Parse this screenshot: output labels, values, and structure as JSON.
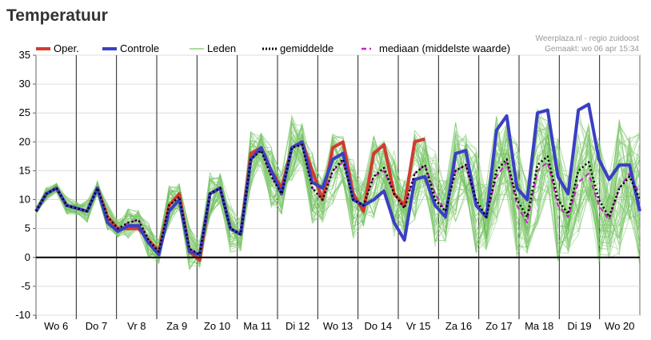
{
  "title": "Temperatuur",
  "credit": {
    "line1": "Weerplaza.nl - regio zuidoost",
    "line2": "Gemaakt: wo 06 apr 15:34"
  },
  "legend": [
    {
      "label": "Oper.",
      "color": "#d23a32",
      "style": "solid-thick"
    },
    {
      "label": "Controle",
      "color": "#3b3fc4",
      "style": "solid-thick"
    },
    {
      "label": "Leden",
      "color": "#8fd07f",
      "style": "thin"
    },
    {
      "label": "gemiddelde",
      "color": "#000000",
      "style": "dotted"
    },
    {
      "label": "mediaan (middelste waarde)",
      "color": "#cc22cc",
      "style": "dashed"
    }
  ],
  "chart_data": {
    "type": "line",
    "title": "Temperatuur",
    "ylim": [
      -10,
      35
    ],
    "yticks": [
      -10,
      -5,
      0,
      5,
      10,
      15,
      20,
      25,
      30,
      35
    ],
    "day_labels": [
      "Wo 6",
      "Do 7",
      "Vr 8",
      "Za 9",
      "Zo 10",
      "Ma 11",
      "Di 12",
      "Wo 13",
      "Do 14",
      "Vr 15",
      "Za 16",
      "Zo 17",
      "Ma 18",
      "Di 19",
      "Wo 20"
    ],
    "x_points": 60,
    "series": [
      {
        "name": "Oper.",
        "color": "#d23a32",
        "values": [
          8,
          11,
          12,
          9,
          8.5,
          8,
          12,
          7,
          5,
          5,
          5,
          3,
          1,
          9,
          11,
          1,
          -0.5,
          11,
          12,
          5,
          4,
          18,
          19,
          15,
          12,
          19,
          20,
          15,
          10,
          19,
          20,
          11,
          8,
          18,
          19.5,
          11,
          9,
          20,
          20.5
        ]
      },
      {
        "name": "Controle",
        "color": "#3b3fc4",
        "values": [
          8,
          11,
          12,
          9,
          8.5,
          8,
          12,
          6,
          4.5,
          5.5,
          5.5,
          2.5,
          0.5,
          8,
          10,
          1,
          0.5,
          11,
          12,
          5,
          4,
          17,
          19,
          15,
          11,
          19,
          20,
          13,
          12,
          17,
          18,
          10,
          9,
          10,
          11.5,
          6,
          3,
          13.5,
          14,
          9,
          7,
          18,
          18.5,
          9,
          7,
          22,
          24.5,
          12,
          10,
          25,
          25.5,
          14,
          11,
          25.5,
          26.5,
          17,
          13.5,
          16,
          16,
          8
        ]
      },
      {
        "name": "gemiddelde",
        "color": "#000000",
        "values": [
          8,
          11,
          12,
          9,
          8.5,
          8,
          12,
          7,
          5,
          6,
          6.5,
          3,
          1,
          9,
          10.5,
          1.5,
          0.5,
          11,
          12,
          5,
          4,
          17,
          18.5,
          14,
          11,
          19,
          19.5,
          12,
          10,
          15,
          17,
          10,
          9,
          14,
          15.5,
          11,
          8.5,
          14.5,
          16,
          10,
          8,
          15,
          16,
          10,
          7,
          15,
          17,
          10,
          7,
          16,
          17.5,
          10,
          7.5,
          15,
          16.5,
          10,
          7,
          12,
          14,
          10
        ]
      },
      {
        "name": "mediaan (middelste waarde)",
        "color": "#cc22cc",
        "values": [
          8,
          11,
          12,
          9,
          8.5,
          8,
          12,
          7,
          5,
          6,
          6.5,
          3,
          1,
          9,
          10.5,
          1.5,
          0.5,
          11,
          12,
          5,
          4,
          17,
          18.5,
          14,
          11,
          19,
          19.5,
          12,
          10,
          15,
          16.5,
          10,
          9,
          14,
          15,
          11,
          8.5,
          14.5,
          16,
          11,
          8,
          15,
          16,
          9,
          7,
          14,
          16.5,
          9,
          6,
          15,
          16.5,
          9,
          7,
          13,
          14.5,
          9,
          6.5,
          12,
          14.5,
          11
        ]
      }
    ]
  }
}
